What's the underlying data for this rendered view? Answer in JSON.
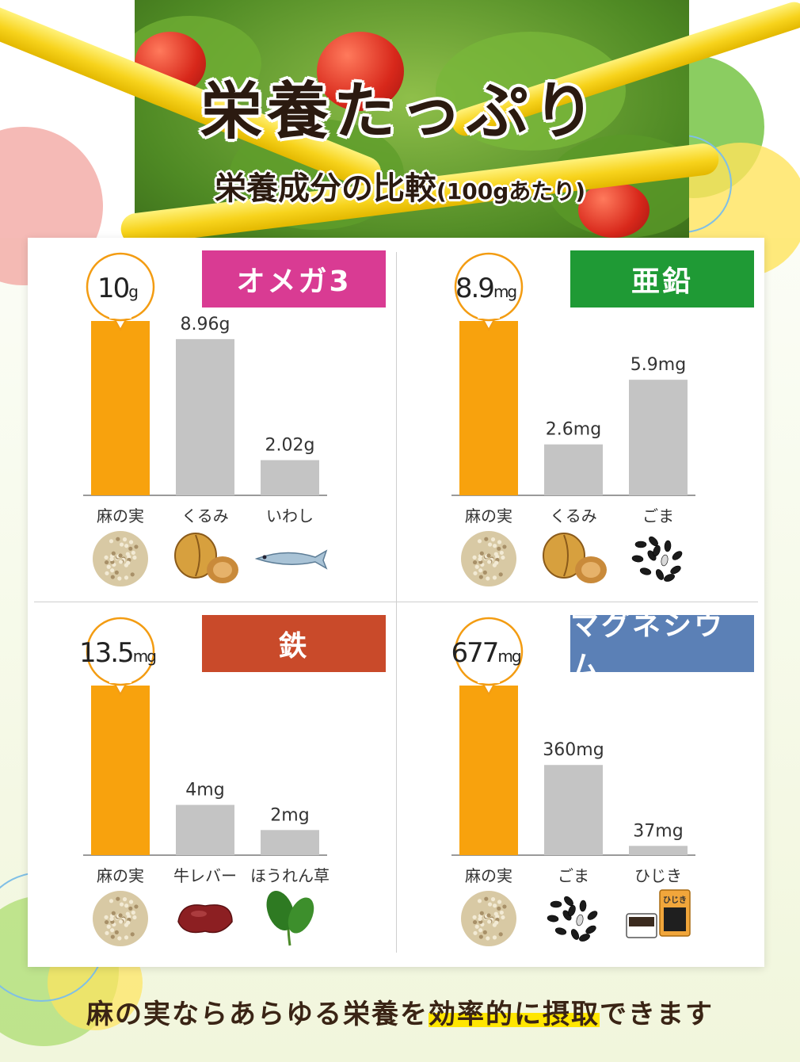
{
  "header": {
    "title": "栄養たっぷり",
    "subtitle_main": "栄養成分の比較",
    "subtitle_note": "(100gあたり)"
  },
  "colors": {
    "highlight_bar": "#f8a20d",
    "compare_bar": "#c4c4c4",
    "baseline": "#9a9a9a"
  },
  "chart_data": [
    {
      "type": "bar",
      "title": "オメガ3",
      "title_color": "#d93b93",
      "categories": [
        "麻の実",
        "くるみ",
        "いわし"
      ],
      "values": [
        10,
        8.96,
        2.02
      ],
      "value_labels": [
        "10",
        "8.96g",
        "2.02g"
      ],
      "highlight_unit": "g",
      "ylim": [
        0,
        10
      ],
      "icons": [
        "hemp-seeds-icon",
        "walnut-icon",
        "sardine-icon"
      ]
    },
    {
      "type": "bar",
      "title": "亜鉛",
      "title_color": "#1f9a35",
      "categories": [
        "麻の実",
        "くるみ",
        "ごま"
      ],
      "values": [
        8.9,
        2.6,
        5.9
      ],
      "value_labels": [
        "8.9",
        "2.6mg",
        "5.9mg"
      ],
      "highlight_unit": "mg",
      "ylim": [
        0,
        8.9
      ],
      "icons": [
        "hemp-seeds-icon",
        "walnut-icon",
        "sesame-icon"
      ]
    },
    {
      "type": "bar",
      "title": "鉄",
      "title_color": "#c94a2a",
      "categories": [
        "麻の実",
        "牛レバー",
        "ほうれん草"
      ],
      "values": [
        13.5,
        4,
        2
      ],
      "value_labels": [
        "13.5",
        "4mg",
        "2mg"
      ],
      "highlight_unit": "mg",
      "ylim": [
        0,
        13.5
      ],
      "icons": [
        "hemp-seeds-icon",
        "beef-liver-icon",
        "spinach-icon"
      ]
    },
    {
      "type": "bar",
      "title": "マグネシウム",
      "title_color": "#5b80b6",
      "categories": [
        "麻の実",
        "ごま",
        "ひじき"
      ],
      "values": [
        677,
        360,
        37
      ],
      "value_labels": [
        "677",
        "360mg",
        "37mg"
      ],
      "highlight_unit": "mg",
      "ylim": [
        0,
        677
      ],
      "icons": [
        "hemp-seeds-icon",
        "sesame-icon",
        "hijiki-icon"
      ],
      "icon_text": "ひじき"
    }
  ],
  "footer": {
    "text_before": "麻の実ならあらゆる栄養を",
    "text_highlight": "効率的に摂取",
    "text_after": "できます"
  }
}
